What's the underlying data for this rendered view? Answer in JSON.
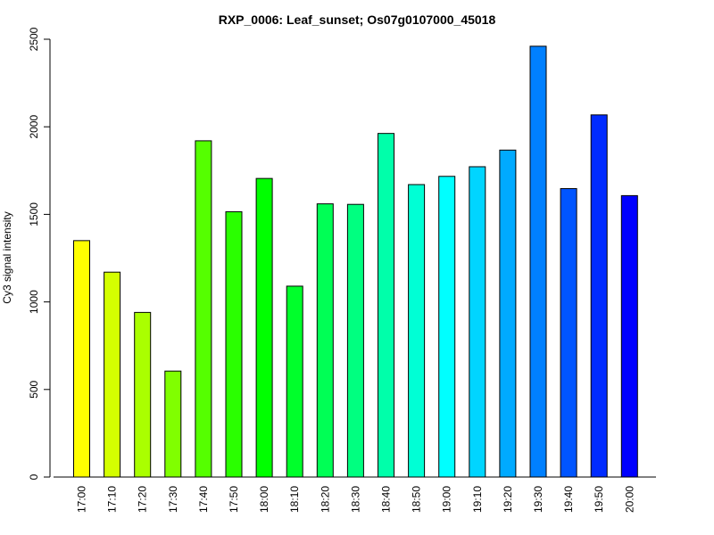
{
  "chart_data": {
    "type": "bar",
    "title": "RXP_0006: Leaf_sunset; Os07g0107000_45018",
    "ylabel": "Cy3 signal intensity",
    "xlabel": "",
    "ylim": [
      0,
      2500
    ],
    "yticks": [
      "0",
      "500",
      "1000",
      "1500",
      "2000",
      "2500"
    ],
    "categories": [
      "17:00",
      "17:10",
      "17:20",
      "17:30",
      "17:40",
      "17:50",
      "18:00",
      "18:10",
      "18:20",
      "18:30",
      "18:40",
      "18:50",
      "19:00",
      "19:10",
      "19:20",
      "19:30",
      "19:40",
      "19:50",
      "20:00"
    ],
    "values": [
      1350,
      1170,
      940,
      605,
      1920,
      1515,
      1705,
      1090,
      1560,
      1557,
      1962,
      1670,
      1717,
      1772,
      1867,
      2460,
      1647,
      2068,
      1607
    ],
    "colors": [
      "#FFFF00",
      "#D4FF00",
      "#AAFF00",
      "#80FF00",
      "#55FF00",
      "#2AFF00",
      "#00FF00",
      "#00FF2B",
      "#00FF55",
      "#00FF80",
      "#00FFAA",
      "#00FFD5",
      "#00FFFF",
      "#00D5FF",
      "#00AAFF",
      "#0080FF",
      "#0055FF",
      "#002BFF",
      "#0000FF"
    ],
    "grid": false,
    "legend": "none"
  }
}
